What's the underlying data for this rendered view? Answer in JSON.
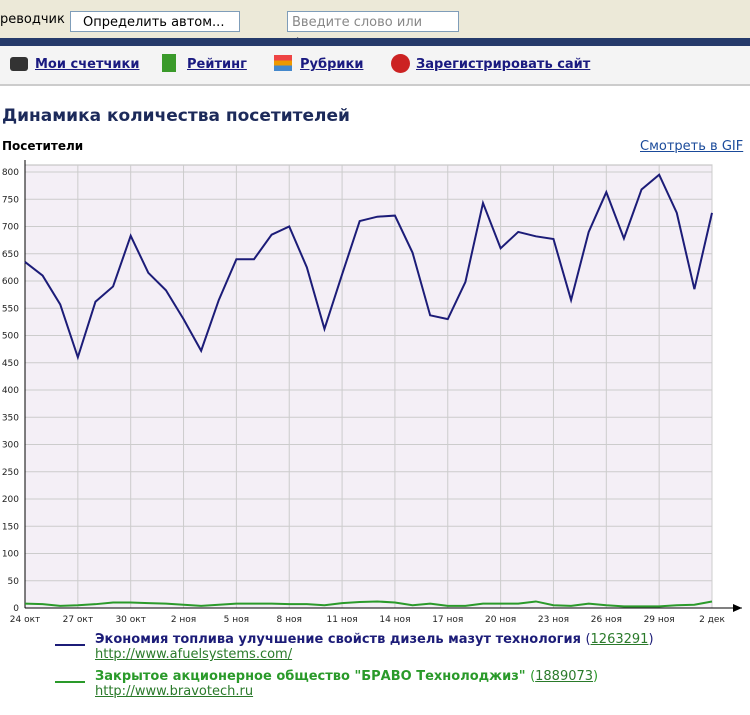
{
  "toolbar": {
    "translator": "реводчик",
    "language_select": "Определить автом...",
    "search_placeholder": "Введите слово или фразу"
  },
  "nav": [
    "Мои счетчики",
    "Рейтинг",
    "Рубрики",
    "Зарегистрировать сайт"
  ],
  "page_title": "Динамика количества посетителей",
  "gif_link": "Смотреть в GIF",
  "legend_brackets": [
    "(",
    ")"
  ],
  "legend": [
    {
      "id": "1263291",
      "url": "http://www.afuelsystems.com/"
    },
    {
      "id": "1889073",
      "url": "http://www.bravotech.ru"
    }
  ],
  "chart_data": {
    "type": "line",
    "y_label": "Посетители",
    "categories": [
      "24 окт",
      null,
      null,
      "27 окт",
      null,
      null,
      "30 окт",
      null,
      null,
      "2 ноя",
      null,
      null,
      "5 ноя",
      null,
      null,
      "8 ноя",
      null,
      null,
      "11 ноя",
      null,
      null,
      "14 ноя",
      null,
      null,
      "17 ноя",
      null,
      null,
      "20 ноя",
      null,
      null,
      "23 ноя",
      null,
      null,
      "26 ноя",
      null,
      null,
      "29 ноя",
      null,
      null,
      "2 дек"
    ],
    "series": [
      {
        "name": "Экономия топлива улучшение свойств дизель мазут технология",
        "color": "#1c1c78",
        "values": [
          635,
          610,
          557,
          460,
          562,
          590,
          683,
          615,
          583,
          530,
          472,
          565,
          640,
          640,
          685,
          700,
          625,
          512,
          612,
          710,
          718,
          720,
          652,
          537,
          530,
          598,
          743,
          660,
          690,
          682,
          677,
          565,
          690,
          763,
          678,
          768,
          795,
          725,
          585,
          725
        ]
      },
      {
        "name": "Закрытое акционерное общество \"БРАВО Технолоджиз\"",
        "color": "#2a9a2a",
        "values": [
          8,
          7,
          4,
          5,
          7,
          10,
          10,
          9,
          8,
          6,
          4,
          6,
          8,
          8,
          8,
          7,
          7,
          5,
          9,
          11,
          12,
          10,
          5,
          8,
          4,
          4,
          8,
          8,
          8,
          12,
          5,
          4,
          8,
          5,
          3,
          3,
          3,
          5,
          6,
          12
        ]
      }
    ],
    "ylim": [
      0,
      800
    ],
    "yticks": [
      0,
      50,
      100,
      150,
      200,
      250,
      300,
      350,
      400,
      450,
      500,
      550,
      600,
      650,
      700,
      750,
      800
    ],
    "grid": true
  }
}
